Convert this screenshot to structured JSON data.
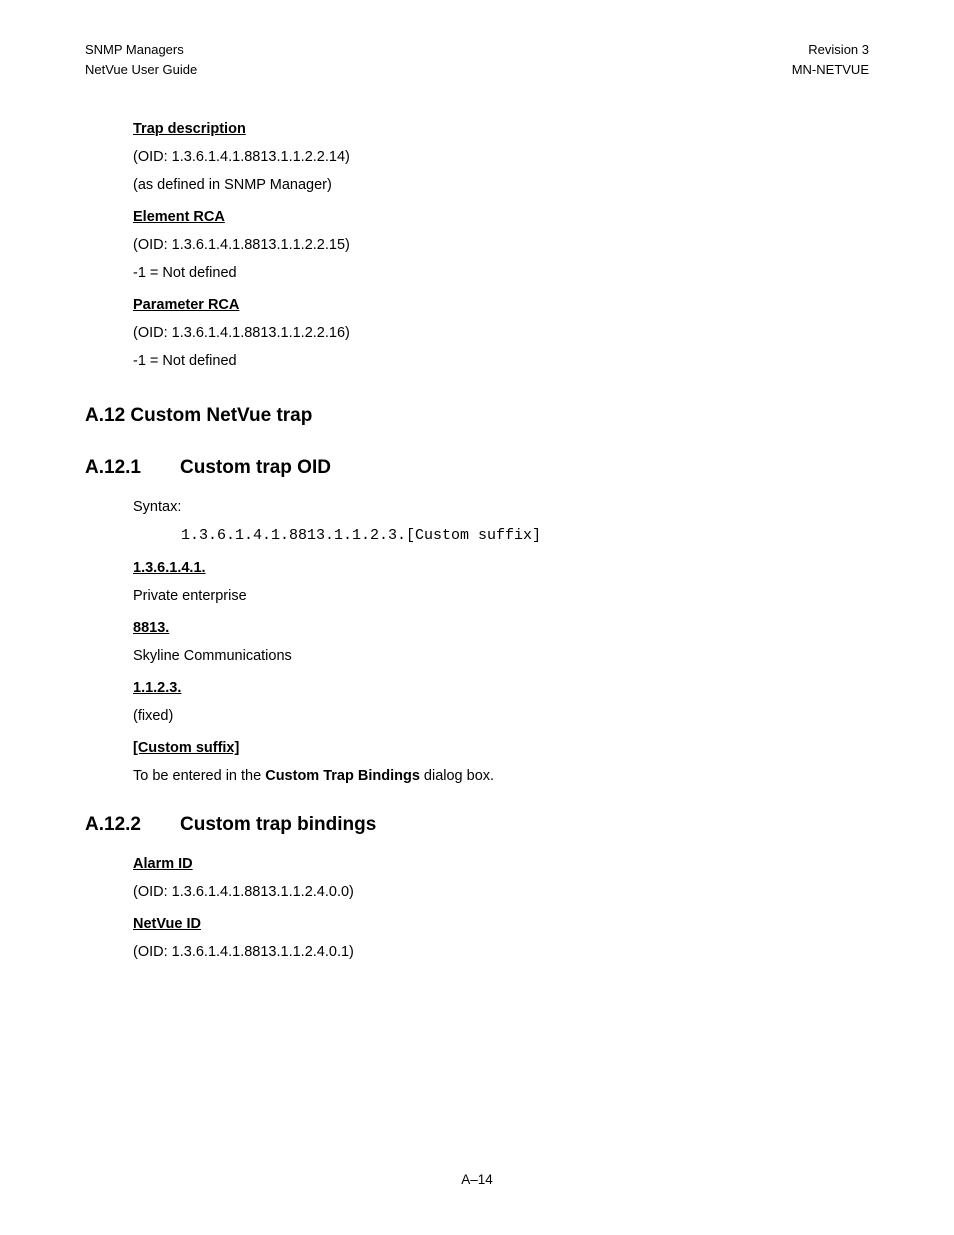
{
  "header": {
    "left1": "SNMP Managers",
    "left2": "NetVue User Guide",
    "right1": "Revision 3",
    "right2": "MN-NETVUE"
  },
  "sections": {
    "trap_desc": {
      "title": "Trap description",
      "oid": "(OID: 1.3.6.1.4.1.8813.1.1.2.2.14)",
      "note": "(as defined in SNMP Manager)"
    },
    "element_rca": {
      "title": "Element RCA",
      "oid": "(OID: 1.3.6.1.4.1.8813.1.1.2.2.15)",
      "note": "-1 = Not defined"
    },
    "parameter_rca": {
      "title": "Parameter RCA",
      "oid": "(OID: 1.3.6.1.4.1.8813.1.1.2.2.16)",
      "note": "-1 = Not defined"
    },
    "a12": {
      "heading": "A.12  Custom NetVue trap"
    },
    "a12_1": {
      "num": "A.12.1",
      "title": "Custom trap OID",
      "syntax_label": "Syntax:",
      "syntax_value": "1.3.6.1.4.1.8813.1.1.2.3.[Custom suffix]",
      "parts": {
        "p1": {
          "key": "1.3.6.1.4.1.",
          "val": "Private enterprise"
        },
        "p2": {
          "key": "8813.",
          "val": "Skyline Communications"
        },
        "p3": {
          "key": "1.1.2.3.",
          "val": "(fixed)"
        },
        "p4": {
          "key": "[Custom suffix]",
          "prefix": "To be entered in the ",
          "bold": "Custom Trap Bindings",
          "suffix": " dialog box."
        }
      }
    },
    "a12_2": {
      "num": "A.12.2",
      "title": "Custom trap bindings",
      "alarm_id": {
        "title": "Alarm ID",
        "oid": "(OID: 1.3.6.1.4.1.8813.1.1.2.4.0.0)"
      },
      "netvue_id": {
        "title": "NetVue ID",
        "oid": "(OID: 1.3.6.1.4.1.8813.1.1.2.4.0.1)"
      }
    }
  },
  "footer": "A–14"
}
